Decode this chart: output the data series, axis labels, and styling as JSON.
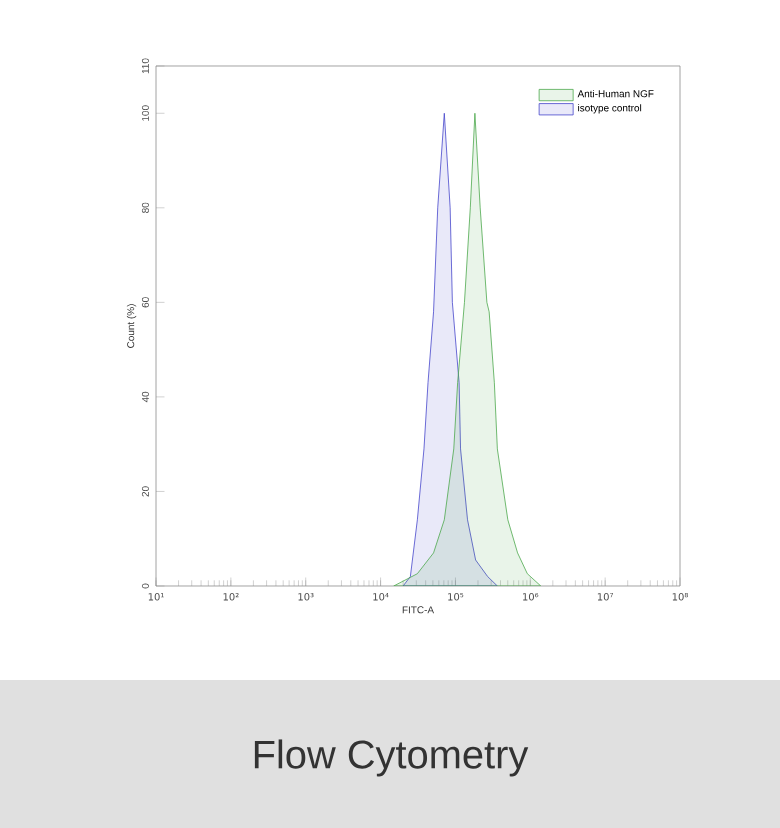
{
  "chart_data": {
    "type": "area",
    "title": "Flow Cytometry",
    "xlabel": "FITC-A",
    "ylabel": "Count (%)",
    "log": "x",
    "xlim": [
      10,
      100000000
    ],
    "ylim": [
      0,
      110
    ],
    "xticks": [
      {
        "value": 10,
        "label": "10¹"
      },
      {
        "value": 100,
        "label": "10²"
      },
      {
        "value": 1000,
        "label": "10³"
      },
      {
        "value": 10000,
        "label": "10⁴"
      },
      {
        "value": 100000,
        "label": "10⁵"
      },
      {
        "value": 1000000,
        "label": "10⁶"
      },
      {
        "value": 10000000,
        "label": "10⁷"
      },
      {
        "value": 100000000,
        "label": "10⁸"
      }
    ],
    "yticks": [
      0,
      20,
      40,
      60,
      80,
      100,
      110
    ],
    "legend": "top right",
    "grid": false,
    "series": [
      {
        "name": "isotype control",
        "color": "#4646cc",
        "x": [
          20000,
          25000,
          31000,
          38000,
          43000,
          51000,
          58000,
          71000,
          85000,
          91000,
          112000,
          117000,
          145000,
          186000,
          269000,
          363000
        ],
        "values": [
          0,
          2,
          14,
          29,
          43,
          58,
          80,
          100,
          80,
          60,
          43,
          29,
          14,
          5.5,
          2,
          0
        ]
      },
      {
        "name": "Anti-Human NGF",
        "color": "#4ca84c",
        "x": [
          15000,
          31000,
          51000,
          71000,
          95000,
          107000,
          132000,
          158000,
          182000,
          214000,
          263000,
          282000,
          331000,
          363000,
          501000,
          676000,
          912000,
          1380000
        ],
        "values": [
          0,
          2.6,
          7,
          14,
          29,
          43,
          60,
          80,
          100,
          80,
          60,
          58,
          43,
          29,
          14,
          7,
          2.6,
          0
        ]
      }
    ]
  }
}
